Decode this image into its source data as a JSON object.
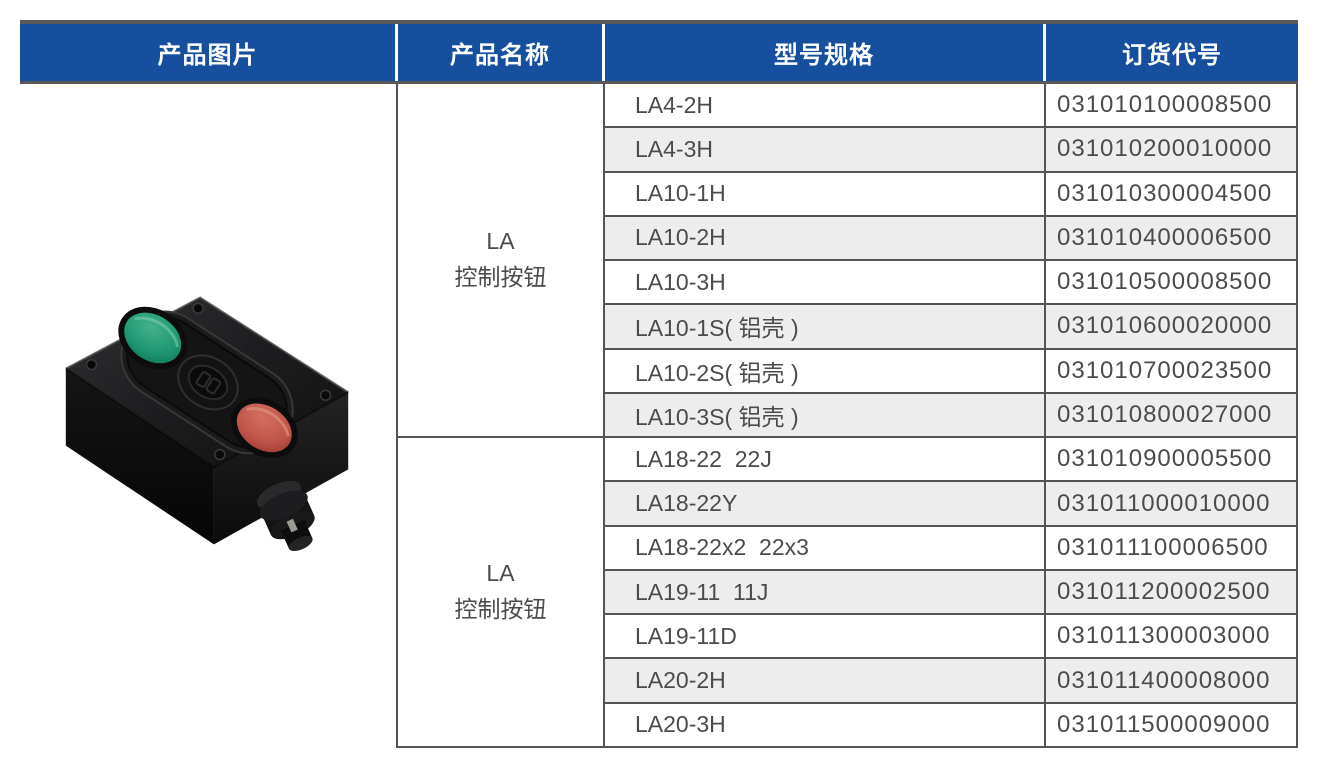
{
  "table": {
    "headers": {
      "image": "产品图片",
      "name": "产品名称",
      "model": "型号规格",
      "code": "订货代号"
    },
    "groups": [
      {
        "name_line1": "LA",
        "name_line2": "控制按钮",
        "rows": [
          {
            "model": "LA4-2H",
            "code": "031010100008500"
          },
          {
            "model": "LA4-3H",
            "code": "031010200010000"
          },
          {
            "model": "LA10-1H",
            "code": "031010300004500"
          },
          {
            "model": "LA10-2H",
            "code": "031010400006500"
          },
          {
            "model": "LA10-3H",
            "code": "031010500008500"
          },
          {
            "model": "LA10-1S( 铝壳 )",
            "code": "031010600020000"
          },
          {
            "model": "LA10-2S( 铝壳 )",
            "code": "031010700023500"
          },
          {
            "model": "LA10-3S( 铝壳 )",
            "code": "031010800027000"
          }
        ]
      },
      {
        "name_line1": "LA",
        "name_line2": "控制按钮",
        "rows": [
          {
            "model": "LA18-22  22J",
            "code": "031010900005500"
          },
          {
            "model": "LA18-22Y",
            "code": "031011000010000"
          },
          {
            "model": "LA18-22x2  22x3",
            "code": "031011100006500"
          },
          {
            "model": "LA19-11  11J",
            "code": "031011200002500"
          },
          {
            "model": "LA19-11D",
            "code": "031011300003000"
          },
          {
            "model": "LA20-2H",
            "code": "031011400008000"
          },
          {
            "model": "LA20-3H",
            "code": "031011500009000"
          }
        ]
      }
    ],
    "product_image": "LA 控制按钮（black control pushbutton box with green and red buttons）"
  },
  "colors": {
    "header_bg": "#164f9e",
    "header_text": "#ffffff",
    "border_dark": "#58585a",
    "grid_line": "#545457",
    "row_stripe": "#ededed",
    "body_text": "#4b4b4d",
    "button_green": "#1f9872",
    "button_red": "#c0554a"
  }
}
